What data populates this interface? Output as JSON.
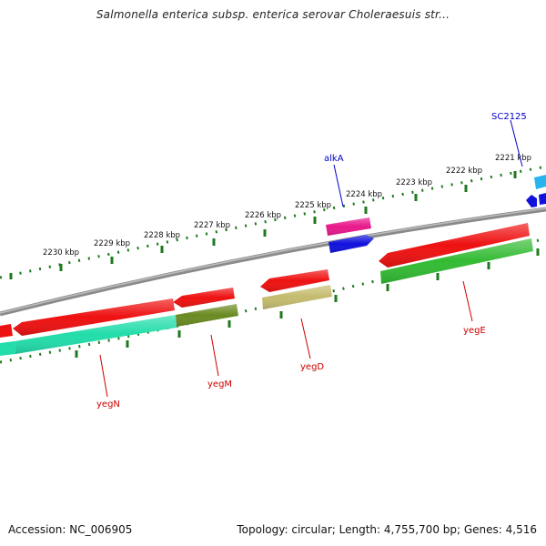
{
  "header": {
    "title": "Salmonella enterica subsp. enterica serovar Choleraesuis str..."
  },
  "footer": {
    "accession": "Accession: NC_006905",
    "topology": "Topology: circular; Length: 4,755,700 bp; Genes: 4,516"
  },
  "map": {
    "backbone_color": "#8a8a8a",
    "tick_color": "#1e7a1e",
    "ticks": [
      {
        "label": "2221 kbp"
      },
      {
        "label": "2222 kbp"
      },
      {
        "label": "2223 kbp"
      },
      {
        "label": "2224 kbp"
      },
      {
        "label": "2225 kbp"
      },
      {
        "label": "2226 kbp"
      },
      {
        "label": "2227 kbp"
      },
      {
        "label": "2228 kbp"
      },
      {
        "label": "2229 kbp"
      },
      {
        "label": "2230 kbp"
      }
    ],
    "gene_labels": [
      {
        "name": "SC2125",
        "color": "#0000cc"
      },
      {
        "name": "alkA",
        "color": "#0000cc"
      },
      {
        "name": "yegE",
        "color": "#cc0000"
      },
      {
        "name": "yegD",
        "color": "#cc0000"
      },
      {
        "name": "yegM",
        "color": "#cc0000"
      },
      {
        "name": "yegN",
        "color": "#cc0000"
      }
    ],
    "colors": {
      "red": "#ee1111",
      "magenta": "#e8198c",
      "blue": "#1111dd",
      "cyan": "#2ab4ee",
      "green": "#33bb33",
      "olive": "#6b8a22",
      "khaki": "#c4bb6e",
      "teal": "#22ddaa"
    }
  }
}
